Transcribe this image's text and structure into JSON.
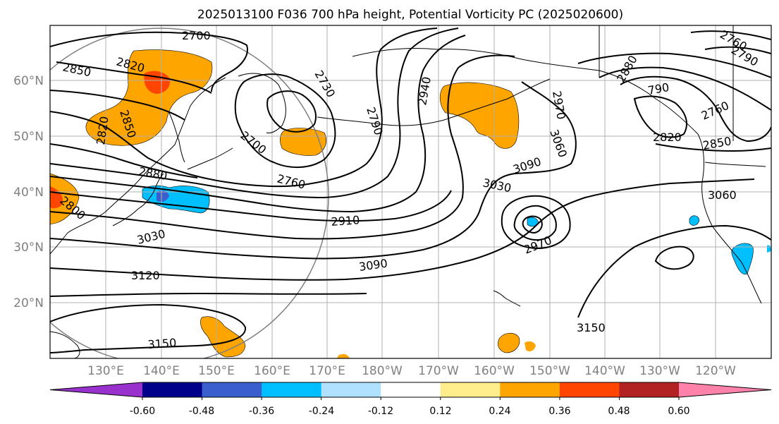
{
  "title": "2025013100 F036 700 hPa height, Potential Vorticity PC (2025020600)",
  "lat_labels": [
    "60°N",
    "50°N",
    "40°N",
    "30°N",
    "20°N"
  ],
  "lon_labels": [
    "130°E",
    "140°E",
    "150°E",
    "160°E",
    "170°E",
    "180°W",
    "170°W",
    "160°W",
    "150°W",
    "140°W",
    "130°W",
    "120°W"
  ],
  "colorbar": {
    "ticks": [
      "-0.60",
      "-0.48",
      "-0.36",
      "-0.24",
      "-0.12",
      "0.12",
      "0.24",
      "0.36",
      "0.48",
      "0.60"
    ],
    "colors": [
      "#9932cc",
      "#00008b",
      "#3a5fcd",
      "#00bfff",
      "#b0e2ff",
      "#ffffff",
      "#ffec8b",
      "#ffa500",
      "#ff4500",
      "#b22222",
      "#ff82ab"
    ]
  },
  "contour_labels": [
    {
      "text": "2700"
    },
    {
      "text": "2850"
    },
    {
      "text": "2820"
    },
    {
      "text": "2820"
    },
    {
      "text": "2850"
    },
    {
      "text": "2730"
    },
    {
      "text": "2790"
    },
    {
      "text": "2700"
    },
    {
      "text": "2760"
    },
    {
      "text": "2880"
    },
    {
      "text": "2800"
    },
    {
      "text": "3030"
    },
    {
      "text": "3120"
    },
    {
      "text": "3150"
    },
    {
      "text": "2910"
    },
    {
      "text": "3090"
    },
    {
      "text": "2940"
    },
    {
      "text": "3030"
    },
    {
      "text": "3090"
    },
    {
      "text": "3060"
    },
    {
      "text": "2970"
    },
    {
      "text": "2970"
    },
    {
      "text": "3150"
    },
    {
      "text": "2880"
    },
    {
      "text": "790"
    },
    {
      "text": "2760"
    },
    {
      "text": "2820"
    },
    {
      "text": "2850"
    },
    {
      "text": "3060"
    },
    {
      "text": "2760"
    },
    {
      "text": "2790"
    }
  ]
}
